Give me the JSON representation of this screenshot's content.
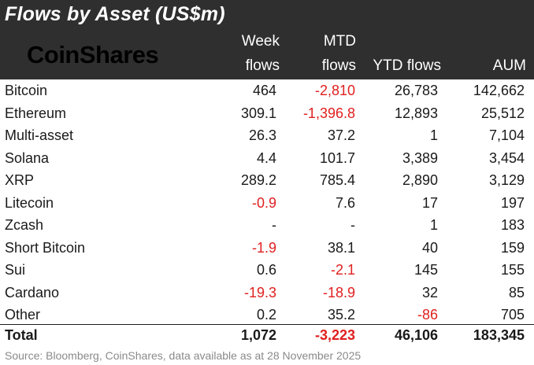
{
  "title": "Flows by Asset (US$m)",
  "logo_text": "CoinShares",
  "headers": {
    "week_line1": "Week",
    "week_line2": "flows",
    "mtd_line1": "MTD",
    "mtd_line2": "flows",
    "ytd": "YTD flows",
    "aum": "AUM"
  },
  "colors": {
    "header_bg": "#2f2f2f",
    "negative": "#e02020",
    "footer": "#8a8a8a"
  },
  "rows": [
    {
      "name": "Bitcoin",
      "week": "464",
      "mtd": "-2,810",
      "ytd": "26,783",
      "aum": "142,662"
    },
    {
      "name": "Ethereum",
      "week": "309.1",
      "mtd": "-1,396.8",
      "ytd": "12,893",
      "aum": "25,512"
    },
    {
      "name": "Multi-asset",
      "week": "26.3",
      "mtd": "37.2",
      "ytd": "1",
      "aum": "7,104"
    },
    {
      "name": "Solana",
      "week": "4.4",
      "mtd": "101.7",
      "ytd": "3,389",
      "aum": "3,454"
    },
    {
      "name": "XRP",
      "week": "289.2",
      "mtd": "785.4",
      "ytd": "2,890",
      "aum": "3,129"
    },
    {
      "name": "Litecoin",
      "week": "-0.9",
      "mtd": "7.6",
      "ytd": "17",
      "aum": "197"
    },
    {
      "name": "Zcash",
      "week": "-",
      "mtd": "-",
      "ytd": "1",
      "aum": "183"
    },
    {
      "name": "Short Bitcoin",
      "week": "-1.9",
      "mtd": "38.1",
      "ytd": "40",
      "aum": "159"
    },
    {
      "name": "Sui",
      "week": "0.6",
      "mtd": "-2.1",
      "ytd": "145",
      "aum": "155"
    },
    {
      "name": "Cardano",
      "week": "-19.3",
      "mtd": "-18.9",
      "ytd": "32",
      "aum": "85"
    },
    {
      "name": "Other",
      "week": "0.2",
      "mtd": "35.2",
      "ytd": "-86",
      "aum": "705"
    }
  ],
  "total": {
    "name": "Total",
    "week": "1,072",
    "mtd": "-3,223",
    "ytd": "46,106",
    "aum": "183,345"
  },
  "footer": "Source: Bloomberg, CoinShares, data available as at 28 November 2025"
}
